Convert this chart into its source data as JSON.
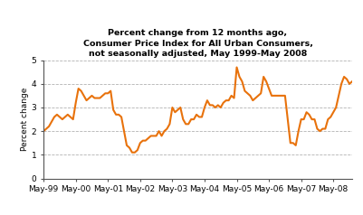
{
  "title_line1": "Percent change from 12 months ago,",
  "title_line2": "Consumer Price Index for All Urban Consumers,",
  "title_line3": "not seasonally adjusted, May 1999-May 2008",
  "ylabel": "Percent change",
  "ylim": [
    0,
    5
  ],
  "yticks": [
    0,
    1,
    2,
    3,
    4,
    5
  ],
  "line_color": "#E8720C",
  "line_width": 1.5,
  "background_color": "#ffffff",
  "grid_color": "#aaaaaa",
  "xtick_labels": [
    "May-99",
    "May-00",
    "May-01",
    "May-02",
    "May-03",
    "May-04",
    "May-05",
    "May-06",
    "May-07",
    "May-08"
  ],
  "values": [
    2.0,
    2.1,
    2.2,
    2.4,
    2.6,
    2.7,
    2.6,
    2.5,
    2.6,
    2.7,
    2.6,
    2.5,
    3.2,
    3.8,
    3.7,
    3.5,
    3.3,
    3.4,
    3.5,
    3.4,
    3.4,
    3.4,
    3.5,
    3.6,
    3.6,
    3.7,
    2.9,
    2.7,
    2.7,
    2.6,
    2.0,
    1.4,
    1.3,
    1.1,
    1.1,
    1.2,
    1.5,
    1.6,
    1.6,
    1.7,
    1.8,
    1.8,
    1.8,
    2.0,
    1.8,
    2.0,
    2.1,
    2.3,
    3.0,
    2.8,
    2.9,
    3.0,
    2.5,
    2.3,
    2.3,
    2.5,
    2.5,
    2.7,
    2.6,
    2.6,
    3.0,
    3.3,
    3.1,
    3.1,
    3.0,
    3.1,
    3.0,
    3.2,
    3.3,
    3.3,
    3.5,
    3.4,
    4.7,
    4.3,
    4.1,
    3.7,
    3.6,
    3.5,
    3.3,
    3.4,
    3.5,
    3.6,
    4.3,
    4.1,
    3.8,
    3.5,
    3.5,
    3.5,
    3.5,
    3.5,
    3.5,
    2.5,
    1.5,
    1.5,
    1.4,
    2.0,
    2.5,
    2.5,
    2.8,
    2.7,
    2.5,
    2.5,
    2.1,
    2.0,
    2.1,
    2.1,
    2.5,
    2.6,
    2.8,
    3.0,
    3.5,
    4.0,
    4.3,
    4.2,
    4.0,
    4.1
  ]
}
